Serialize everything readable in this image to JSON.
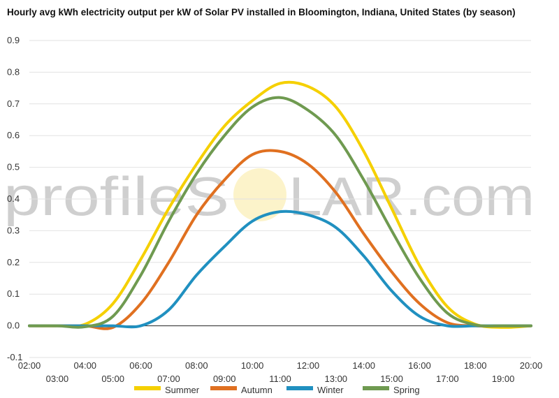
{
  "chart_data": {
    "type": "line",
    "title": "Hourly avg kWh electricity output per kW of Solar PV installed in Bloomington, Indiana, United States (by season)",
    "watermark": {
      "left": "profileS",
      "right": "LAR.com"
    },
    "xlabel": "",
    "ylabel": "",
    "xlim": [
      2,
      20
    ],
    "ylim": [
      -0.1,
      0.9
    ],
    "y_ticks": [
      "-0.1",
      "0.0",
      "0.1",
      "0.2",
      "0.3",
      "0.4",
      "0.5",
      "0.6",
      "0.7",
      "0.8",
      "0.9"
    ],
    "x_ticks": [
      "02:00",
      "03:00",
      "04:00",
      "05:00",
      "06:00",
      "07:00",
      "08:00",
      "09:00",
      "10:00",
      "11:00",
      "12:00",
      "13:00",
      "14:00",
      "15:00",
      "16:00",
      "17:00",
      "18:00",
      "19:00",
      "20:00"
    ],
    "x": [
      2,
      3,
      4,
      5,
      6,
      7,
      8,
      9,
      10,
      11,
      12,
      13,
      14,
      15,
      16,
      17,
      18,
      19,
      20
    ],
    "legend_position": "bottom",
    "series": [
      {
        "name": "Summer",
        "color": "#f5d000",
        "values": [
          0.0,
          0.0,
          0.005,
          0.07,
          0.21,
          0.37,
          0.51,
          0.63,
          0.71,
          0.765,
          0.755,
          0.69,
          0.55,
          0.37,
          0.19,
          0.06,
          0.005,
          -0.005,
          0.0
        ]
      },
      {
        "name": "Autumn",
        "color": "#e07020",
        "values": [
          0.0,
          0.0,
          0.0,
          -0.005,
          0.07,
          0.2,
          0.35,
          0.46,
          0.54,
          0.55,
          0.51,
          0.42,
          0.29,
          0.17,
          0.07,
          0.01,
          0.0,
          0.0,
          0.0
        ]
      },
      {
        "name": "Winter",
        "color": "#2090c0",
        "values": [
          0.0,
          0.0,
          0.0,
          0.0,
          0.0,
          0.05,
          0.16,
          0.25,
          0.33,
          0.36,
          0.35,
          0.31,
          0.22,
          0.11,
          0.03,
          0.0,
          0.0,
          0.0,
          0.0
        ]
      },
      {
        "name": "Spring",
        "color": "#6f9a50",
        "values": [
          0.0,
          0.0,
          -0.003,
          0.03,
          0.16,
          0.33,
          0.48,
          0.6,
          0.69,
          0.72,
          0.68,
          0.6,
          0.46,
          0.3,
          0.15,
          0.04,
          0.003,
          0.0,
          0.0
        ]
      }
    ]
  }
}
